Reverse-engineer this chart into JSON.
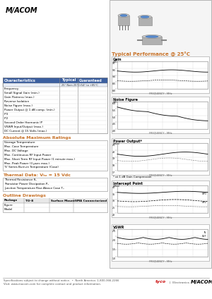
{
  "macom_logo_text": "M/ACOM",
  "typical_perf_title": "Typical Performance @ 25°C",
  "table_header_cols": [
    "Characteristics",
    "Typical",
    "Guaranteed"
  ],
  "table_subheader": [
    "",
    "25° Nom 25°C",
    "+54° to +85°C"
  ],
  "table_rows": [
    "Frequency",
    "Small Signal Gain (min.)",
    "Gain Flatness (max.)",
    "Reverse Isolation",
    "Noise Figure (max.)",
    "Power Output @ 1 dB comp. (min.)",
    "IP3",
    "IP2",
    "Second Order Harmonic IP",
    "VSWR Input/Output (max.)",
    "DC Current @ 15 Volts (max.)"
  ],
  "abs_max_title": "Absolute Maximum Ratings",
  "abs_max_rows": [
    "Storage Temperature",
    "Max. Case Temperature",
    "Max. DC Voltage",
    "Max. Continuous RF Input Power",
    "Max. Short Term RF Input Power (1 minute max.)",
    "Max. Peak Power (3 μsec max.)",
    "'S' Series Burn-in Temperature (Case)"
  ],
  "thermal_title": "Thermal Data: Vₕₓ = 15 Vdc",
  "thermal_rows": [
    "Thermal Resistance θₕ",
    "Transistor Power Dissipation Pₕ",
    "Junction Temperature Rise Above Case Tₕ"
  ],
  "outline_title": "Outline Drawings",
  "outline_headers": [
    "Package",
    "TO-8",
    "Surface Mount",
    "SMA Connectorized"
  ],
  "outline_rows": [
    "Figure",
    "Model"
  ],
  "footer1": "Specifications subject to change without notice.  •  North America: 1-800-366-2266",
  "footer2": "Visit: www.macom.com for complete contact and product information.",
  "graph_labels": [
    "Gain",
    "Noise Figure",
    "Power Output*",
    "Intercept Point",
    "VSWR"
  ],
  "graph_note": "* at 1 dB Gain Compression",
  "graph_xlabel": "FREQUENCY - MHz",
  "bg_color": "#ffffff",
  "table_header_bg": "#3b5fa0",
  "table_header_fg": "#ffffff",
  "section_title_color": "#c8732a",
  "border_color": "#999999",
  "light_gray": "#dddddd",
  "panel_bg": "#f5f5f5"
}
